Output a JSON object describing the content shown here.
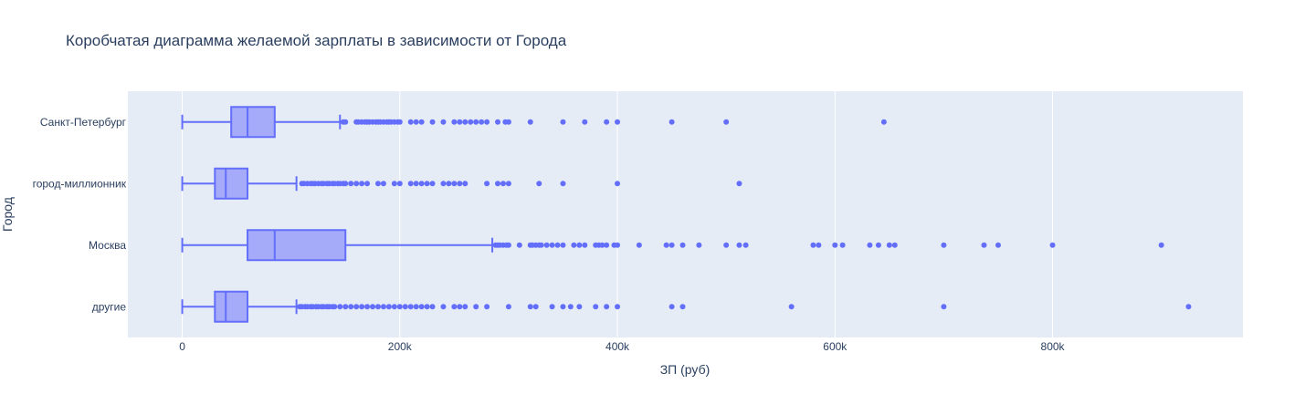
{
  "chart_data": {
    "type": "box",
    "orientation": "horizontal",
    "title": "Коробчатая диаграмма желаемой зарплаты в зависимости от Города",
    "xlabel": "ЗП (руб)",
    "ylabel": "Город",
    "xlim": [
      -50000,
      975000
    ],
    "x_ticks": [
      {
        "value": 0,
        "label": "0"
      },
      {
        "value": 200000,
        "label": "200k"
      },
      {
        "value": 400000,
        "label": "400k"
      },
      {
        "value": 600000,
        "label": "600k"
      },
      {
        "value": 800000,
        "label": "800k"
      }
    ],
    "categories": [
      "Санкт-Петербург",
      "город-миллионник",
      "Москва",
      "другие"
    ],
    "grid": "x",
    "colors": {
      "plot_bg": "#e5ecf6",
      "grid": "#ffffff",
      "box_line": "#636efa",
      "box_fill": "#a5aaf9",
      "point": "#636efa",
      "text": "#2a3f5f"
    },
    "boxes": [
      {
        "category": "Санкт-Петербург",
        "min": 0,
        "q1": 45000,
        "median": 60000,
        "q3": 85000,
        "upper_fence": 145000,
        "outliers": [
          148000,
          150000,
          160000,
          162000,
          165000,
          168000,
          170000,
          172000,
          175000,
          178000,
          180000,
          182000,
          185000,
          188000,
          190000,
          192000,
          195000,
          198000,
          200000,
          210000,
          215000,
          220000,
          230000,
          240000,
          250000,
          255000,
          260000,
          265000,
          270000,
          275000,
          280000,
          290000,
          297000,
          300000,
          320000,
          350000,
          370000,
          390000,
          400000,
          450000,
          500000,
          645000
        ]
      },
      {
        "category": "город-миллионник",
        "min": 0,
        "q1": 30000,
        "median": 40000,
        "q3": 60000,
        "upper_fence": 105000,
        "outliers": [
          110000,
          112000,
          115000,
          118000,
          120000,
          122000,
          125000,
          128000,
          130000,
          133000,
          135000,
          138000,
          140000,
          143000,
          145000,
          148000,
          150000,
          155000,
          160000,
          165000,
          170000,
          180000,
          185000,
          195000,
          200000,
          210000,
          215000,
          220000,
          225000,
          230000,
          240000,
          245000,
          250000,
          255000,
          260000,
          280000,
          290000,
          295000,
          300000,
          328000,
          350000,
          400000,
          512000
        ]
      },
      {
        "category": "Москва",
        "min": 0,
        "q1": 60000,
        "median": 85000,
        "q3": 150000,
        "upper_fence": 285000,
        "outliers": [
          288000,
          290000,
          292000,
          295000,
          298000,
          300000,
          310000,
          320000,
          322000,
          325000,
          328000,
          330000,
          335000,
          340000,
          345000,
          350000,
          360000,
          365000,
          370000,
          380000,
          383000,
          386000,
          390000,
          397000,
          400000,
          420000,
          445000,
          450000,
          460000,
          475000,
          500000,
          512000,
          518000,
          580000,
          585000,
          600000,
          607000,
          632000,
          640000,
          650000,
          655000,
          700000,
          737000,
          750000,
          800000,
          900000
        ]
      },
      {
        "category": "другие",
        "min": 0,
        "q1": 30000,
        "median": 40000,
        "q3": 60000,
        "upper_fence": 105000,
        "outliers": [
          108000,
          110000,
          113000,
          115000,
          118000,
          120000,
          123000,
          125000,
          128000,
          130000,
          133000,
          135000,
          138000,
          140000,
          145000,
          150000,
          155000,
          160000,
          165000,
          170000,
          175000,
          180000,
          185000,
          190000,
          195000,
          200000,
          205000,
          210000,
          215000,
          220000,
          225000,
          230000,
          240000,
          250000,
          255000,
          260000,
          270000,
          280000,
          300000,
          320000,
          325000,
          340000,
          350000,
          357000,
          365000,
          380000,
          390000,
          400000,
          450000,
          460000,
          560000,
          700000,
          925000
        ]
      }
    ]
  }
}
